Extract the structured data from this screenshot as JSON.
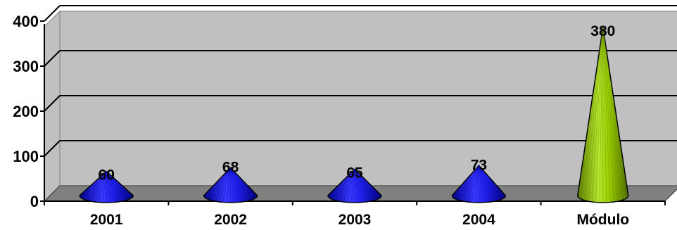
{
  "chart_data": {
    "type": "bar",
    "bar_shape": "cone",
    "categories": [
      "2001",
      "2002",
      "2003",
      "2004",
      "Módulo"
    ],
    "values": [
      60,
      68,
      65,
      73,
      380
    ],
    "data_labels": [
      "60",
      "68",
      "65",
      "73",
      "380"
    ],
    "y_ticks": [
      "0",
      "100",
      "200",
      "300",
      "400"
    ],
    "ylim": [
      0,
      400
    ],
    "grid": true,
    "legend": "none",
    "colors": {
      "series": [
        "#1a1aff",
        "#1a1aff",
        "#1a1aff",
        "#1a1aff",
        "#99cc00"
      ],
      "plot_background": "#c0c0c0",
      "floor": "#808080"
    }
  }
}
